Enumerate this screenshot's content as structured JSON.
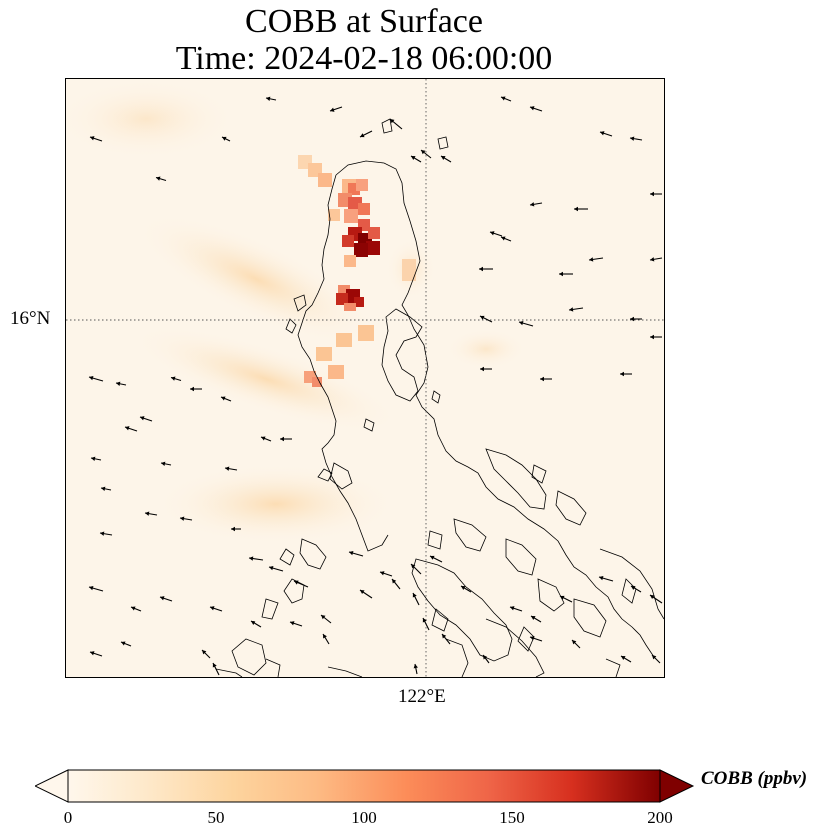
{
  "figure": {
    "title_line1": "COBB at Surface",
    "title_line2": "Time: 2024-02-18 06:00:00"
  },
  "map": {
    "lat_gridline_label": "16°N",
    "lon_gridline_label": "122°E",
    "background_color": "#fdf5e9",
    "coastline_color": "#000000"
  },
  "colorbar": {
    "label": "COBB (ppbv)",
    "min": 0,
    "max": 200,
    "ticks": [
      "0",
      "50",
      "100",
      "150",
      "200"
    ],
    "colormap": "OrRd",
    "extend": "both"
  },
  "chart_data": {
    "type": "heatmap",
    "title": "COBB at Surface\nTime: 2024-02-18 06:00:00",
    "variable": "COBB",
    "units": "ppbv",
    "value_range": [
      0,
      200
    ],
    "hotspots": [
      {
        "lon": 121.55,
        "lat": 16.55,
        "value": 200
      },
      {
        "lon": 121.45,
        "lat": 16.75,
        "value": 120
      },
      {
        "lon": 121.45,
        "lat": 16.15,
        "value": 190
      },
      {
        "lon": 121.3,
        "lat": 15.7,
        "value": 60
      },
      {
        "lon": 121.0,
        "lat": 15.1,
        "value": 30
      }
    ]
  }
}
